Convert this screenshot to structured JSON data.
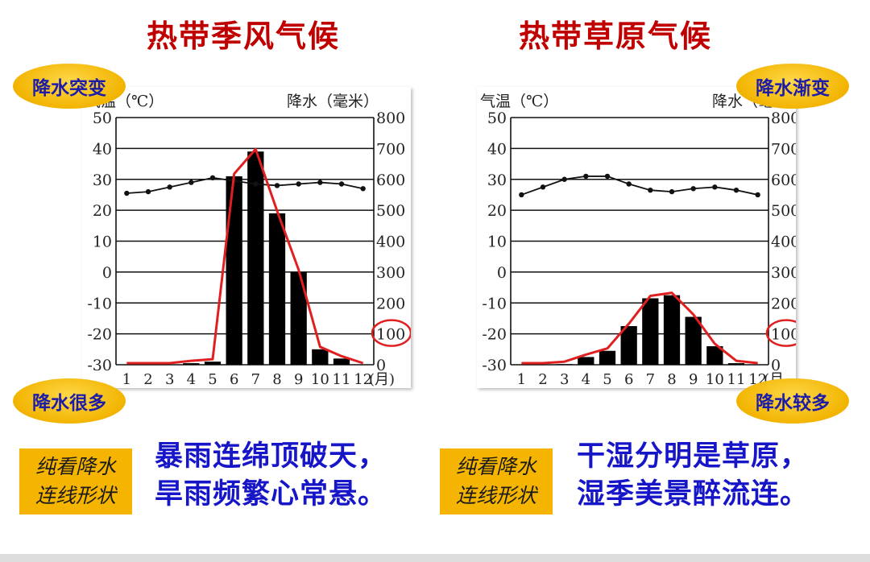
{
  "titles": {
    "left": "热带季风气候",
    "right": "热带草原气候"
  },
  "ovals": {
    "left_top": "降水突变",
    "left_bottom": "降水很多",
    "right_top": "降水渐变",
    "right_bottom": "降水较多"
  },
  "tags": {
    "left": [
      "纯看降水",
      "连线形状"
    ],
    "right": [
      "纯看降水",
      "连线形状"
    ]
  },
  "poems": {
    "left": [
      "暴雨连绵顶破天，",
      "旱雨频繁心常悬。"
    ],
    "right": [
      "干湿分明是草原，",
      "湿季美景醉流连。"
    ]
  },
  "colors": {
    "title": "#c00000",
    "poem": "#1616c8",
    "oval": "#f2b400",
    "highlight": "#e02020",
    "bar": "#000000"
  },
  "chart_data": [
    {
      "type": "bar+line",
      "title": "热带季风气候",
      "y_left_label": "气温（℃）",
      "y_right_label": "降水（毫米）",
      "x_unit": "(月)",
      "categories": [
        "1",
        "2",
        "3",
        "4",
        "5",
        "6",
        "7",
        "8",
        "9",
        "10",
        "11",
        "12"
      ],
      "y_left_ticks": [
        50,
        40,
        30,
        20,
        10,
        0,
        -10,
        -20,
        -30
      ],
      "y_right_ticks": [
        800,
        700,
        600,
        500,
        400,
        300,
        200,
        100,
        0
      ],
      "ylim_left": [
        -30,
        50
      ],
      "ylim_right": [
        0,
        800
      ],
      "series": [
        {
          "name": "降水",
          "kind": "bar",
          "values": [
            0,
            0,
            0,
            5,
            10,
            610,
            690,
            490,
            300,
            50,
            20,
            0
          ]
        },
        {
          "name": "气温",
          "kind": "line",
          "values": [
            25.5,
            26,
            27.5,
            29,
            30.5,
            29.5,
            28.5,
            28,
            28.5,
            29,
            28.5,
            27
          ]
        }
      ],
      "highlight_label": "100"
    },
    {
      "type": "bar+line",
      "title": "热带草原气候",
      "y_left_label": "气温（℃）",
      "y_right_label": "降水（毫",
      "x_unit": "(月",
      "categories": [
        "1",
        "2",
        "3",
        "4",
        "5",
        "6",
        "7",
        "8",
        "9",
        "10",
        "11",
        "12"
      ],
      "y_left_ticks": [
        50,
        40,
        30,
        20,
        10,
        0,
        -10,
        -20,
        -30
      ],
      "y_right_ticks": [
        800,
        700,
        600,
        500,
        400,
        300,
        200,
        100,
        0
      ],
      "ylim_left": [
        -30,
        50
      ],
      "ylim_right": [
        0,
        800
      ],
      "series": [
        {
          "name": "降水",
          "kind": "bar",
          "values": [
            0,
            0,
            2,
            25,
            45,
            125,
            215,
            225,
            155,
            60,
            5,
            0
          ]
        },
        {
          "name": "气温",
          "kind": "line",
          "values": [
            25,
            27.5,
            30,
            31,
            31,
            28.5,
            26.5,
            26,
            27,
            27.5,
            26.5,
            25
          ]
        }
      ],
      "highlight_label": "100"
    }
  ]
}
